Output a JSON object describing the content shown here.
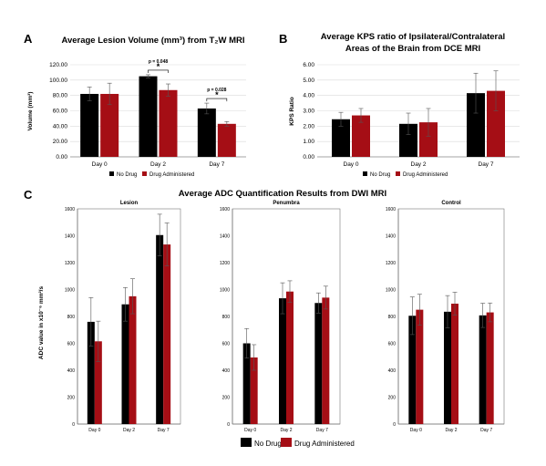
{
  "figure": {
    "letters": [
      "A",
      "B",
      "C"
    ],
    "legend": {
      "no_drug": "No Drug",
      "drug": "Drug Administered"
    },
    "colors": {
      "no_drug": "#000000",
      "drug": "#a50e15",
      "grid": "#d9d9d9",
      "axis": "#888888"
    }
  },
  "chart_data": [
    {
      "id": "A",
      "type": "bar",
      "title": "Average Lesion Volume (mm³) from T₂W MRI",
      "ylabel": "Volume (mm³)",
      "categories": [
        "Day 0",
        "Day 2",
        "Day 7"
      ],
      "ylim": [
        0,
        120
      ],
      "yticks": [
        "0.00",
        "20.00",
        "40.00",
        "60.00",
        "80.00",
        "100.00",
        "120.00"
      ],
      "grid": true,
      "legend_position": "bottom",
      "series": [
        {
          "name": "No Drug",
          "values": [
            82,
            105,
            63
          ],
          "errors": [
            9,
            2,
            7
          ]
        },
        {
          "name": "Drug Administered",
          "values": [
            82,
            87,
            43
          ],
          "errors": [
            14,
            8,
            3
          ]
        }
      ],
      "annotations": [
        {
          "category": "Day 2",
          "p": "p = 0.048",
          "star": "*"
        },
        {
          "category": "Day 7",
          "p": "p = 0.028",
          "star": "*"
        }
      ]
    },
    {
      "id": "B",
      "type": "bar",
      "title": "Average KPS ratio of Ipsilateral/Contralateral Areas of the Brain from DCE MRI",
      "title_lines": [
        "Average KPS ratio of Ipsilateral/Contralateral",
        "Areas of the Brain from DCE MRI"
      ],
      "ylabel": "KPS Ratio",
      "categories": [
        "Day 0",
        "Day 2",
        "Day 7"
      ],
      "ylim": [
        0,
        6
      ],
      "yticks": [
        "0.00",
        "1.00",
        "2.00",
        "3.00",
        "4.00",
        "5.00",
        "6.00"
      ],
      "grid": true,
      "legend_position": "bottom",
      "series": [
        {
          "name": "No Drug",
          "values": [
            2.45,
            2.15,
            4.15
          ],
          "errors": [
            0.45,
            0.7,
            1.3
          ]
        },
        {
          "name": "Drug Administered",
          "values": [
            2.7,
            2.25,
            4.3
          ],
          "errors": [
            0.45,
            0.9,
            1.3
          ]
        }
      ]
    },
    {
      "id": "C",
      "type": "bar",
      "title": "Average ADC Quantification Results from DWI MRI",
      "ylabel": "ADC value in x10⁻⁶ mm²/s",
      "legend_position": "bottom",
      "subplots": [
        {
          "title": "Lesion",
          "categories": [
            "Day 0",
            "Day 2",
            "Day 7"
          ],
          "ylim": [
            0,
            1600
          ],
          "yticks": [
            "0",
            "200",
            "400",
            "600",
            "800",
            "1000",
            "1200",
            "1400",
            "1600"
          ],
          "series": [
            {
              "name": "No Drug",
              "values": [
                760,
                890,
                1405
              ],
              "errors": [
                180,
                125,
                155
              ]
            },
            {
              "name": "Drug Administered",
              "values": [
                615,
                950,
                1335
              ],
              "errors": [
                150,
                130,
                160
              ]
            }
          ]
        },
        {
          "title": "Penumbra",
          "categories": [
            "Day 0",
            "Day 2",
            "Day 7"
          ],
          "ylim": [
            0,
            1600
          ],
          "yticks": [
            "0",
            "200",
            "400",
            "600",
            "800",
            "1000",
            "1200",
            "1400",
            "1600"
          ],
          "series": [
            {
              "name": "No Drug",
              "values": [
                600,
                935,
                900
              ],
              "errors": [
                110,
                115,
                75
              ]
            },
            {
              "name": "Drug Administered",
              "values": [
                495,
                985,
                940
              ],
              "errors": [
                95,
                80,
                85
              ]
            }
          ]
        },
        {
          "title": "Control",
          "categories": [
            "Day 0",
            "Day 2",
            "Day 7"
          ],
          "ylim": [
            0,
            1600
          ],
          "yticks": [
            "0",
            "200",
            "400",
            "600",
            "800",
            "1000",
            "1200",
            "1400",
            "1600"
          ],
          "series": [
            {
              "name": "No Drug",
              "values": [
                805,
                835,
                808
              ],
              "errors": [
                140,
                120,
                90
              ]
            },
            {
              "name": "Drug Administered",
              "values": [
                850,
                895,
                830
              ],
              "errors": [
                115,
                85,
                70
              ]
            }
          ]
        }
      ]
    }
  ]
}
